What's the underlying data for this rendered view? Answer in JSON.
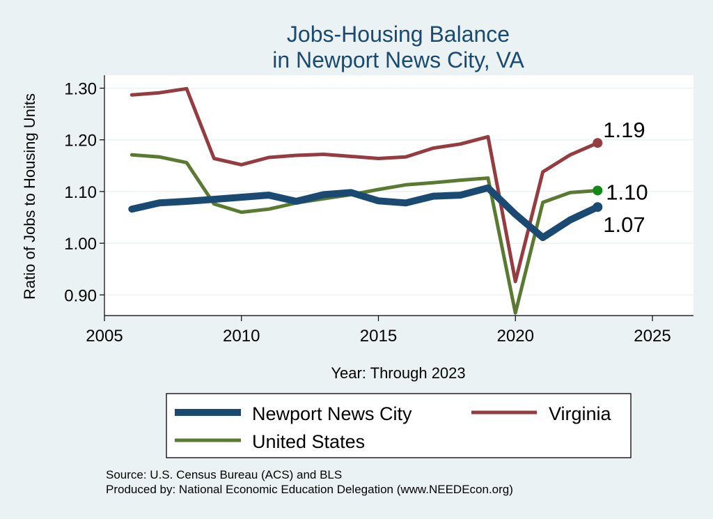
{
  "chart_data": {
    "type": "line",
    "title": [
      "Jobs-Housing Balance",
      "in Newport News City, VA"
    ],
    "xlabel": "Year: Through 2023",
    "ylabel": "Ratio of Jobs to Housing Units",
    "xlim": [
      2005,
      2026.5
    ],
    "ylim": [
      0.86,
      1.325
    ],
    "xticks": [
      2005,
      2010,
      2015,
      2020,
      2025
    ],
    "yticks": [
      "0.90",
      "1.00",
      "1.10",
      "1.20",
      "1.30"
    ],
    "ytick_values": [
      0.9,
      1.0,
      1.1,
      1.2,
      1.3
    ],
    "grid": true,
    "legend_position": "bottom",
    "x": [
      2006,
      2007,
      2008,
      2009,
      2010,
      2011,
      2012,
      2013,
      2014,
      2015,
      2016,
      2017,
      2018,
      2019,
      2020,
      2021,
      2022,
      2023
    ],
    "series": [
      {
        "name": "Newport News City",
        "color": "#1a4a72",
        "values": [
          1.066,
          1.078,
          1.081,
          1.085,
          1.089,
          1.093,
          1.081,
          1.094,
          1.098,
          1.082,
          1.078,
          1.091,
          1.093,
          1.107,
          1.056,
          1.011,
          1.045,
          1.07
        ],
        "end_label": "1.07",
        "end_marker_color": "#1a4a72"
      },
      {
        "name": "Virginia",
        "color": "#943c40",
        "values": [
          1.287,
          1.291,
          1.299,
          1.164,
          1.152,
          1.166,
          1.17,
          1.172,
          1.168,
          1.164,
          1.167,
          1.184,
          1.192,
          1.206,
          0.926,
          1.138,
          1.171,
          1.194
        ],
        "end_label": "1.19",
        "end_marker_color": "#943c40"
      },
      {
        "name": "United States",
        "color": "#5a7a32",
        "values": [
          1.171,
          1.167,
          1.156,
          1.076,
          1.06,
          1.066,
          1.078,
          1.086,
          1.094,
          1.104,
          1.113,
          1.117,
          1.122,
          1.126,
          0.865,
          1.079,
          1.098,
          1.102
        ],
        "end_label": "1.10",
        "end_marker_color": "#138a17"
      }
    ],
    "legend": [
      "Newport News City",
      "Virginia",
      "United States"
    ],
    "source": [
      "Source: U.S. Census Bureau (ACS) and BLS",
      "Produced by: National Economic Education Delegation (www.NEEDEcon.org)"
    ]
  }
}
